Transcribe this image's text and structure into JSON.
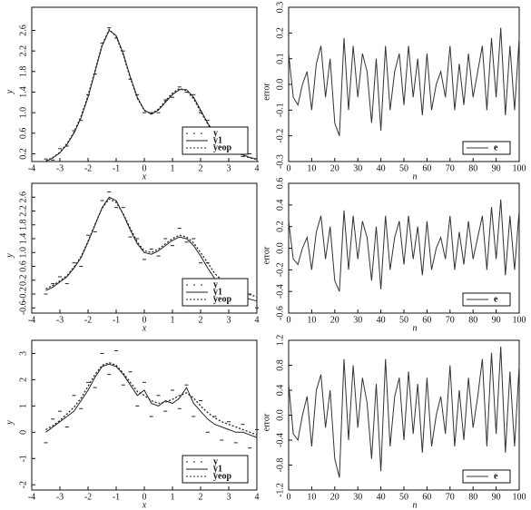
{
  "chart_data": [
    {
      "type": "line",
      "xlabel": "x",
      "ylabel": "y",
      "xlim": [
        -4,
        4
      ],
      "xticks": [
        -4,
        -3,
        -2,
        -1,
        0,
        1,
        2,
        3,
        4
      ],
      "ylim": [
        0.05,
        3.05
      ],
      "yticks": [
        0.2,
        0.6,
        {
          "value": 1,
          "label": "1.0"
        },
        1.4,
        1.8,
        2.2,
        2.6
      ],
      "legend": "lower right",
      "x": [
        -3.5,
        -3.25,
        -3,
        -2.75,
        -2.5,
        -2.25,
        -2,
        -1.75,
        -1.5,
        -1.25,
        -1,
        -0.75,
        -0.5,
        -0.25,
        0,
        0.25,
        0.5,
        0.75,
        1,
        1.25,
        1.5,
        1.75,
        2,
        2.25,
        2.5,
        2.75,
        3,
        3.25,
        3.5,
        3.75,
        4
      ],
      "series": [
        {
          "name": "y",
          "color": "#222",
          "style": "points",
          "values": [
            0.1,
            0.08,
            0.3,
            0.35,
            0.65,
            0.85,
            1.35,
            1.75,
            2.35,
            2.65,
            2.45,
            2.2,
            1.65,
            1.35,
            1.0,
            1.0,
            1.0,
            1.25,
            1.3,
            1.5,
            1.4,
            1.35,
            1.0,
            0.85,
            0.55,
            0.5,
            0.3,
            0.3,
            0.15,
            0.2,
            0.05
          ]
        },
        {
          "name": "y1",
          "color": "#222",
          "style": "solid",
          "values": [
            0.05,
            0.12,
            0.22,
            0.38,
            0.6,
            0.9,
            1.3,
            1.8,
            2.3,
            2.6,
            2.5,
            2.15,
            1.7,
            1.3,
            1.05,
            0.97,
            1.05,
            1.2,
            1.35,
            1.45,
            1.45,
            1.3,
            1.05,
            0.8,
            0.6,
            0.45,
            0.33,
            0.25,
            0.18,
            0.13,
            0.1
          ]
        },
        {
          "name": "yeop",
          "color": "#222",
          "style": "dotted",
          "values": [
            0.06,
            0.13,
            0.23,
            0.4,
            0.62,
            0.93,
            1.33,
            1.83,
            2.32,
            2.62,
            2.48,
            2.12,
            1.68,
            1.28,
            1.04,
            0.98,
            1.07,
            1.23,
            1.38,
            1.47,
            1.43,
            1.27,
            1.02,
            0.78,
            0.58,
            0.44,
            0.32,
            0.24,
            0.17,
            0.12,
            0.09
          ]
        }
      ]
    },
    {
      "type": "line",
      "xlabel": "n",
      "ylabel": "error",
      "xlim": [
        0,
        100
      ],
      "xticks": [
        0,
        10,
        20,
        30,
        40,
        50,
        60,
        70,
        80,
        90,
        100
      ],
      "ylim": [
        -0.3,
        0.3
      ],
      "yticks": [
        -0.3,
        -0.2,
        -0.1,
        {
          "value": 0,
          "label": "0.0"
        },
        0.1,
        0.2,
        0.3
      ],
      "legend": "lower right",
      "x": [
        0,
        2,
        4,
        6,
        8,
        10,
        12,
        14,
        16,
        18,
        20,
        22,
        24,
        26,
        28,
        30,
        32,
        34,
        36,
        38,
        40,
        42,
        44,
        46,
        48,
        50,
        52,
        54,
        56,
        58,
        60,
        62,
        64,
        66,
        68,
        70,
        72,
        74,
        76,
        78,
        80,
        82,
        84,
        86,
        88,
        90,
        92,
        94,
        96,
        98,
        100
      ],
      "series": [
        {
          "name": "e",
          "color": "#333",
          "style": "solid",
          "values": [
            0.12,
            -0.05,
            -0.08,
            0.0,
            0.05,
            -0.1,
            0.08,
            0.15,
            -0.05,
            0.1,
            -0.15,
            -0.2,
            0.18,
            -0.1,
            0.15,
            -0.05,
            0.12,
            0.05,
            -0.15,
            0.1,
            -0.18,
            0.15,
            -0.1,
            0.05,
            0.12,
            -0.08,
            0.15,
            -0.05,
            0.1,
            -0.12,
            0.12,
            -0.1,
            0.0,
            0.05,
            -0.05,
            0.15,
            -0.1,
            0.08,
            -0.08,
            0.12,
            -0.05,
            0.05,
            0.15,
            -0.1,
            0.18,
            -0.05,
            0.22,
            -0.12,
            0.15,
            -0.1,
            0.18
          ]
        }
      ]
    },
    {
      "type": "line",
      "xlabel": "x",
      "ylabel": "y",
      "xlim": [
        -4,
        4
      ],
      "xticks": [
        -4,
        -3,
        -2,
        -1,
        0,
        1,
        2,
        3,
        4
      ],
      "ylim": [
        -0.75,
        3.0
      ],
      "yticks": [
        -0.6,
        -0.2,
        0.2,
        0.6,
        {
          "value": 1,
          "label": "1.0"
        },
        1.4,
        1.8,
        2.2,
        2.6
      ],
      "legend": "lower right",
      "x": [
        -3.5,
        -3.25,
        -3,
        -2.75,
        -2.5,
        -2.25,
        -2,
        -1.75,
        -1.5,
        -1.25,
        -1,
        -0.75,
        -0.5,
        -0.25,
        0,
        0.25,
        0.5,
        0.75,
        1,
        1.25,
        1.5,
        1.75,
        2,
        2.25,
        2.5,
        2.75,
        3,
        3.25,
        3.5,
        3.75,
        4
      ],
      "series": [
        {
          "name": "y",
          "color": "#222",
          "style": "points",
          "values": [
            -0.2,
            0.1,
            0.3,
            0.1,
            0.7,
            0.6,
            1.5,
            1.6,
            2.5,
            2.75,
            2.3,
            2.3,
            1.45,
            1.4,
            0.8,
            1.1,
            0.9,
            1.4,
            1.2,
            1.7,
            1.3,
            1.4,
            0.7,
            0.7,
            0.1,
            0.2,
            -0.3,
            0.0,
            -0.5,
            -0.2,
            -0.6
          ]
        },
        {
          "name": "y1",
          "color": "#222",
          "style": "solid",
          "values": [
            -0.1,
            0.0,
            0.15,
            0.3,
            0.55,
            0.85,
            1.3,
            1.8,
            2.3,
            2.6,
            2.5,
            2.1,
            1.65,
            1.25,
            1.0,
            0.95,
            1.05,
            1.2,
            1.35,
            1.45,
            1.4,
            1.2,
            0.9,
            0.55,
            0.25,
            0.05,
            -0.1,
            -0.2,
            -0.3,
            -0.35,
            -0.4
          ]
        },
        {
          "name": "yeop",
          "color": "#222",
          "style": "dotted",
          "values": [
            -0.05,
            0.05,
            0.18,
            0.33,
            0.58,
            0.88,
            1.33,
            1.82,
            2.28,
            2.55,
            2.45,
            2.12,
            1.7,
            1.3,
            1.05,
            1.0,
            1.1,
            1.25,
            1.4,
            1.5,
            1.45,
            1.28,
            1.0,
            0.7,
            0.4,
            0.2,
            0.05,
            -0.05,
            -0.15,
            -0.22,
            -0.28
          ]
        }
      ]
    },
    {
      "type": "line",
      "xlabel": "n",
      "ylabel": "error",
      "xlim": [
        0,
        100
      ],
      "xticks": [
        0,
        10,
        20,
        30,
        40,
        50,
        60,
        70,
        80,
        90,
        100
      ],
      "ylim": [
        -0.6,
        0.6
      ],
      "yticks": [
        -0.6,
        -0.4,
        -0.2,
        {
          "value": 0,
          "label": "0.0"
        },
        0.2,
        0.4,
        0.6
      ],
      "legend": "lower right",
      "x": [
        0,
        2,
        4,
        6,
        8,
        10,
        12,
        14,
        16,
        18,
        20,
        22,
        24,
        26,
        28,
        30,
        32,
        34,
        36,
        38,
        40,
        42,
        44,
        46,
        48,
        50,
        52,
        54,
        56,
        58,
        60,
        62,
        64,
        66,
        68,
        70,
        72,
        74,
        76,
        78,
        80,
        82,
        84,
        86,
        88,
        90,
        92,
        94,
        96,
        98,
        100
      ],
      "series": [
        {
          "name": "e",
          "color": "#333",
          "style": "solid",
          "values": [
            0.25,
            -0.1,
            -0.15,
            0.0,
            0.1,
            -0.2,
            0.15,
            0.3,
            -0.1,
            0.2,
            -0.3,
            -0.4,
            0.35,
            -0.2,
            0.3,
            -0.1,
            0.25,
            0.1,
            -0.3,
            0.2,
            -0.38,
            0.3,
            -0.2,
            0.1,
            0.25,
            -0.15,
            0.3,
            -0.1,
            0.2,
            -0.25,
            0.25,
            -0.2,
            0.0,
            0.1,
            -0.1,
            0.3,
            -0.2,
            0.15,
            -0.15,
            0.25,
            -0.1,
            0.1,
            0.3,
            -0.2,
            0.38,
            -0.1,
            0.45,
            -0.25,
            0.3,
            -0.2,
            0.35
          ]
        }
      ]
    },
    {
      "type": "line",
      "xlabel": "x",
      "ylabel": "y",
      "xlim": [
        -4,
        4
      ],
      "xticks": [
        -4,
        -3,
        -2,
        -1,
        0,
        1,
        2,
        3,
        4
      ],
      "ylim": [
        -2.2,
        3.5
      ],
      "yticks": [
        -2,
        -1,
        0,
        1,
        2,
        3
      ],
      "legend": "lower right",
      "x": [
        -3.5,
        -3.25,
        -3,
        -2.75,
        -2.5,
        -2.25,
        -2,
        -1.75,
        -1.5,
        -1.25,
        -1,
        -0.75,
        -0.5,
        -0.25,
        0,
        0.25,
        0.5,
        0.75,
        1,
        1.25,
        1.5,
        1.75,
        2,
        2.25,
        2.5,
        2.75,
        3,
        3.25,
        3.5,
        3.75,
        4
      ],
      "series": [
        {
          "name": "y",
          "color": "#222",
          "style": "points",
          "values": [
            -0.4,
            0.5,
            0.8,
            0.2,
            1.4,
            0.9,
            1.9,
            1.7,
            3.0,
            2.2,
            3.1,
            1.8,
            2.3,
            1.0,
            1.9,
            0.6,
            1.4,
            0.8,
            1.6,
            0.9,
            1.8,
            0.6,
            1.2,
            0.0,
            0.6,
            -0.3,
            0.4,
            -0.4,
            0.3,
            -0.6,
            0.1
          ]
        },
        {
          "name": "y1",
          "color": "#222",
          "style": "solid",
          "values": [
            0.0,
            0.2,
            0.4,
            0.6,
            0.8,
            1.2,
            1.6,
            2.1,
            2.5,
            2.6,
            2.5,
            2.2,
            1.8,
            1.4,
            1.6,
            1.1,
            1.0,
            1.2,
            1.1,
            1.3,
            1.7,
            1.1,
            0.8,
            0.5,
            0.3,
            0.2,
            0.1,
            0.0,
            0.0,
            -0.1,
            -0.2
          ]
        },
        {
          "name": "yeop",
          "color": "#222",
          "style": "dotted",
          "values": [
            0.1,
            0.25,
            0.45,
            0.7,
            0.95,
            1.3,
            1.75,
            2.2,
            2.55,
            2.65,
            2.55,
            2.25,
            1.9,
            1.55,
            1.4,
            1.2,
            1.1,
            1.15,
            1.25,
            1.4,
            1.5,
            1.3,
            1.0,
            0.75,
            0.55,
            0.4,
            0.3,
            0.2,
            0.1,
            0.0,
            -0.1
          ]
        }
      ]
    },
    {
      "type": "line",
      "xlabel": "n",
      "ylabel": "error",
      "xlim": [
        0,
        100
      ],
      "xticks": [
        0,
        10,
        20,
        30,
        40,
        50,
        60,
        70,
        80,
        90,
        100
      ],
      "ylim": [
        -1.2,
        1.2
      ],
      "yticks": [
        -1.2,
        -0.8,
        -0.4,
        {
          "value": 0,
          "label": "0.0"
        },
        0.4,
        0.8,
        1.2
      ],
      "legend": "lower right",
      "x": [
        0,
        2,
        4,
        6,
        8,
        10,
        12,
        14,
        16,
        18,
        20,
        22,
        24,
        26,
        28,
        30,
        32,
        34,
        36,
        38,
        40,
        42,
        44,
        46,
        48,
        50,
        52,
        54,
        56,
        58,
        60,
        62,
        64,
        66,
        68,
        70,
        72,
        74,
        76,
        78,
        80,
        82,
        84,
        86,
        88,
        90,
        92,
        94,
        96,
        98,
        100
      ],
      "series": [
        {
          "name": "e",
          "color": "#333",
          "style": "solid",
          "values": [
            0.5,
            -0.3,
            -0.4,
            0.0,
            0.3,
            -0.5,
            0.4,
            0.65,
            -0.2,
            0.4,
            -0.7,
            -1.0,
            0.9,
            -0.4,
            0.8,
            -0.2,
            0.6,
            0.2,
            -0.7,
            0.5,
            -0.9,
            0.9,
            -0.5,
            0.3,
            0.6,
            -0.4,
            0.7,
            -0.3,
            0.5,
            -0.6,
            0.6,
            -0.5,
            0.0,
            0.3,
            -0.3,
            0.8,
            -0.5,
            0.4,
            -0.4,
            0.6,
            -0.2,
            0.3,
            0.9,
            -0.5,
            1.0,
            -0.3,
            1.1,
            -0.6,
            0.7,
            -0.5,
            0.8
          ]
        }
      ]
    }
  ]
}
